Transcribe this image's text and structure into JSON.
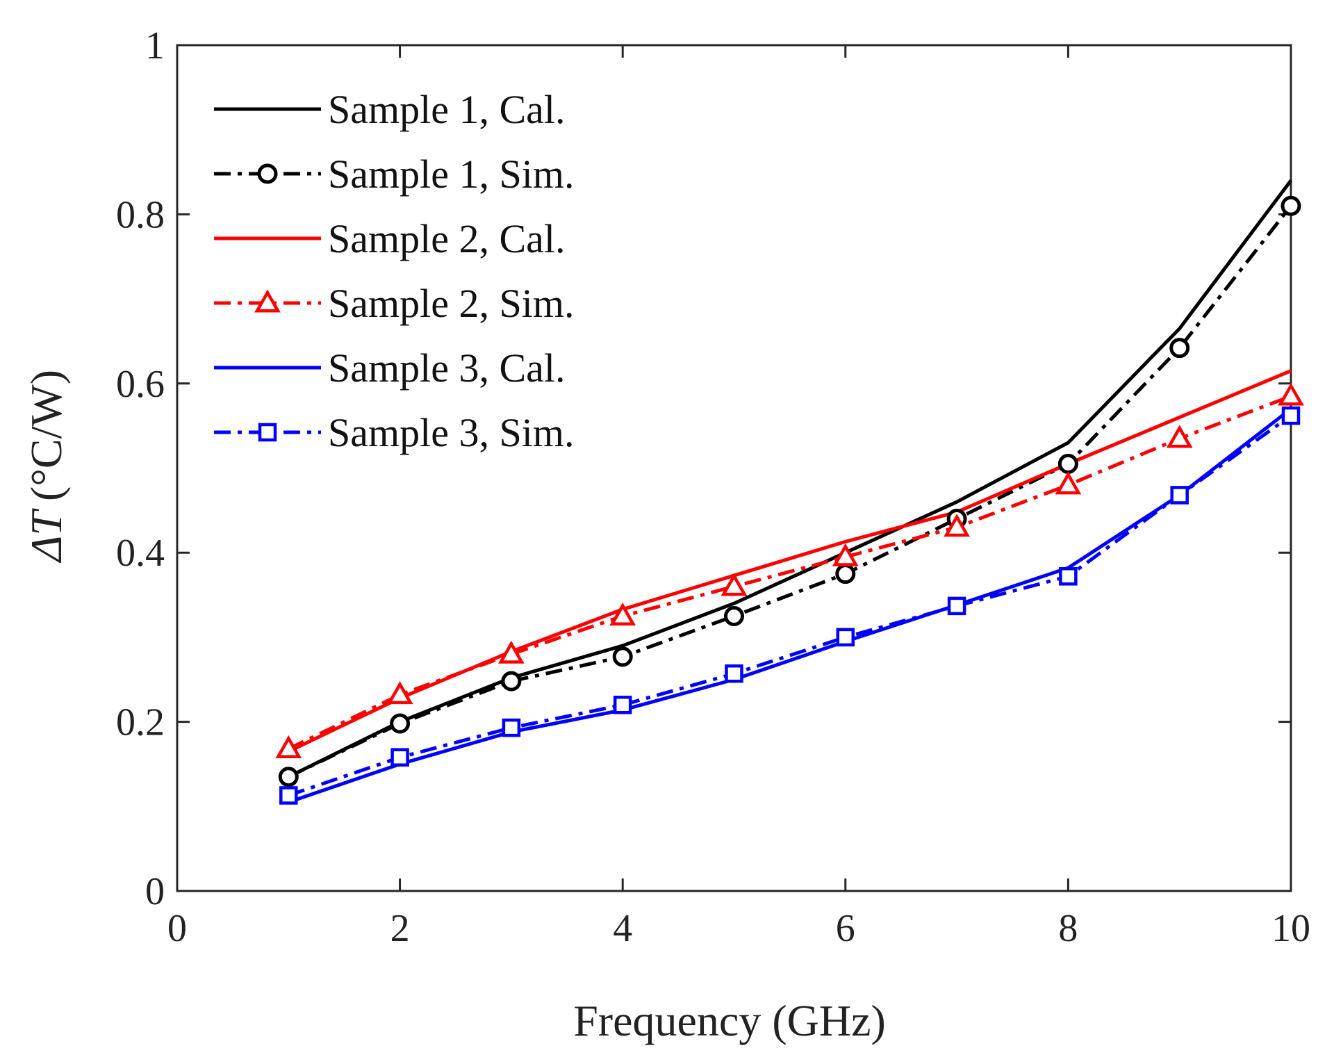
{
  "chart_data": {
    "type": "line",
    "title": "",
    "xlabel": "Frequency (GHz)",
    "ylabel_symbol": "ΔT",
    "ylabel_unit": "(°C/W)",
    "xlim": [
      0,
      10
    ],
    "ylim": [
      0,
      1
    ],
    "x_ticks": [
      0,
      2,
      4,
      6,
      8,
      10
    ],
    "y_ticks": [
      0,
      0.2,
      0.4,
      0.6,
      0.8,
      1
    ],
    "x_tick_labels": [
      "0",
      "2",
      "4",
      "6",
      "8",
      "10"
    ],
    "y_tick_labels": [
      "0",
      "0.2",
      "0.4",
      "0.6",
      "0.8",
      "1"
    ],
    "grid": false,
    "legend_position": "top-left",
    "x": [
      1,
      2,
      3,
      4,
      5,
      6,
      7,
      8,
      9,
      10
    ],
    "series": [
      {
        "name": "Sample 1, Cal.",
        "color": "#000000",
        "style": "solid",
        "marker": "none",
        "values": [
          0.135,
          0.2,
          0.252,
          0.29,
          0.34,
          0.4,
          0.46,
          0.53,
          0.665,
          0.84
        ]
      },
      {
        "name": "Sample 1, Sim.",
        "color": "#000000",
        "style": "dashdot",
        "marker": "circle",
        "values": [
          0.135,
          0.198,
          0.248,
          0.277,
          0.325,
          0.375,
          0.44,
          0.505,
          0.642,
          0.81
        ]
      },
      {
        "name": "Sample 2, Cal.",
        "color": "#ff0000",
        "style": "solid",
        "marker": "none",
        "values": [
          0.165,
          0.228,
          0.283,
          0.333,
          0.373,
          0.413,
          0.448,
          0.505,
          0.56,
          0.615
        ]
      },
      {
        "name": "Sample 2, Sim.",
        "color": "#ff0000",
        "style": "dashdot",
        "marker": "triangle",
        "values": [
          0.168,
          0.232,
          0.28,
          0.325,
          0.36,
          0.395,
          0.43,
          0.48,
          0.535,
          0.585
        ]
      },
      {
        "name": "Sample 3, Cal.",
        "color": "#0000ff",
        "style": "solid",
        "marker": "none",
        "values": [
          0.105,
          0.15,
          0.188,
          0.214,
          0.25,
          0.295,
          0.338,
          0.382,
          0.468,
          0.57
        ]
      },
      {
        "name": "Sample 3, Sim.",
        "color": "#0000ff",
        "style": "dashdot",
        "marker": "square",
        "values": [
          0.113,
          0.158,
          0.193,
          0.22,
          0.257,
          0.3,
          0.337,
          0.372,
          0.468,
          0.562
        ]
      }
    ]
  }
}
